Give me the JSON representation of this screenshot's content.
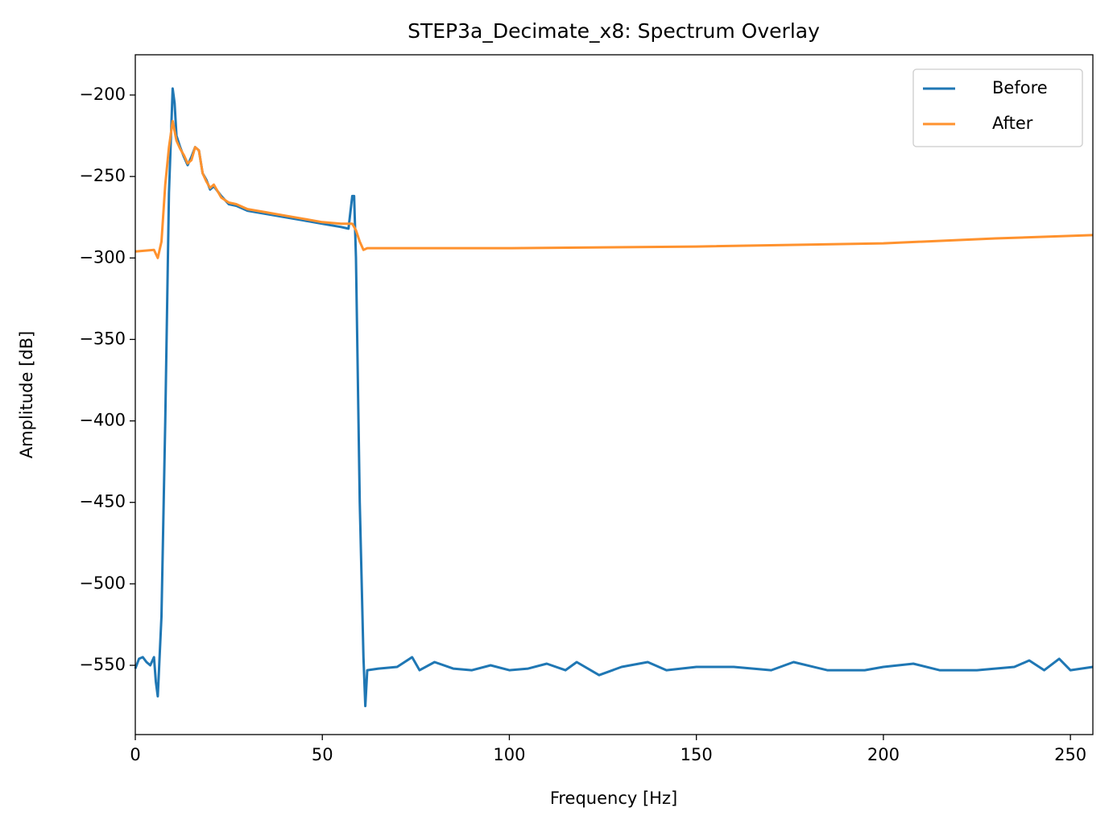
{
  "chart_data": {
    "type": "line",
    "title": "STEP3a_Decimate_x8: Spectrum Overlay",
    "x_label": "Frequency [Hz]",
    "y_label": "Amplitude [dB]",
    "xlim": [
      0,
      256
    ],
    "ylim": [
      -592.5,
      -175.3
    ],
    "xticks": [
      0,
      50,
      100,
      150,
      200,
      250
    ],
    "yticks": [
      {
        "value": -200,
        "label": "−200"
      },
      {
        "value": -250,
        "label": "−250"
      },
      {
        "value": -300,
        "label": "−300"
      },
      {
        "value": -350,
        "label": "−350"
      },
      {
        "value": -400,
        "label": "−400"
      },
      {
        "value": -450,
        "label": "−450"
      },
      {
        "value": -500,
        "label": "−500"
      },
      {
        "value": -550,
        "label": "−550"
      }
    ],
    "grid": false,
    "legend": "upper right",
    "series": [
      {
        "name": "Before",
        "color": "#1f77b4",
        "x": [
          0,
          1,
          2,
          3,
          4,
          5,
          5.5,
          6,
          7,
          8,
          9,
          10,
          10.5,
          11,
          12,
          13,
          14,
          15,
          16,
          17,
          18,
          19,
          20,
          21,
          23,
          25,
          27,
          30,
          35,
          40,
          45,
          50,
          55,
          57,
          58,
          58.5,
          59,
          60,
          61,
          61.5,
          62,
          65,
          70,
          74,
          76,
          80,
          85,
          90,
          95,
          100,
          105,
          110,
          115,
          118,
          124,
          130,
          137,
          142,
          150,
          160,
          170,
          176,
          185,
          195,
          200,
          208,
          215,
          225,
          235,
          239,
          243,
          247,
          250,
          256
        ],
        "values": [
          -552,
          -546,
          -545,
          -548,
          -550,
          -545,
          -560,
          -569,
          -520,
          -400,
          -260,
          -196,
          -205,
          -225,
          -232,
          -238,
          -243,
          -238,
          -232,
          -234,
          -248,
          -252,
          -258,
          -256,
          -262,
          -267,
          -268,
          -271,
          -273,
          -275,
          -277,
          -279,
          -281,
          -282,
          -262,
          -262,
          -300,
          -450,
          -545,
          -575,
          -553,
          -552,
          -551,
          -545,
          -553,
          -548,
          -552,
          -553,
          -550,
          -553,
          -552,
          -549,
          -553,
          -548,
          -556,
          -551,
          -548,
          -553,
          -551,
          -551,
          -553,
          -548,
          -553,
          -553,
          -551,
          -549,
          -553,
          -553,
          -551,
          -547,
          -553,
          -546,
          -553,
          -551
        ]
      },
      {
        "name": "After",
        "color": "#ff922e",
        "x": [
          0,
          5,
          6,
          7,
          8,
          9,
          10,
          11,
          12,
          13,
          14,
          15,
          16,
          17,
          18,
          19,
          20,
          21,
          23,
          25,
          27,
          30,
          35,
          40,
          45,
          50,
          55,
          58,
          59,
          60,
          61,
          62,
          100,
          150,
          200,
          230,
          256
        ],
        "values": [
          -296,
          -295,
          -300,
          -290,
          -255,
          -232,
          -216,
          -228,
          -233,
          -237,
          -242,
          -240,
          -232,
          -234,
          -248,
          -253,
          -257,
          -255,
          -263,
          -266,
          -267,
          -270,
          -272,
          -274,
          -276,
          -278,
          -279,
          -279,
          -283,
          -290,
          -295,
          -294,
          -294,
          -293,
          -291,
          -288,
          -286
        ]
      }
    ]
  }
}
